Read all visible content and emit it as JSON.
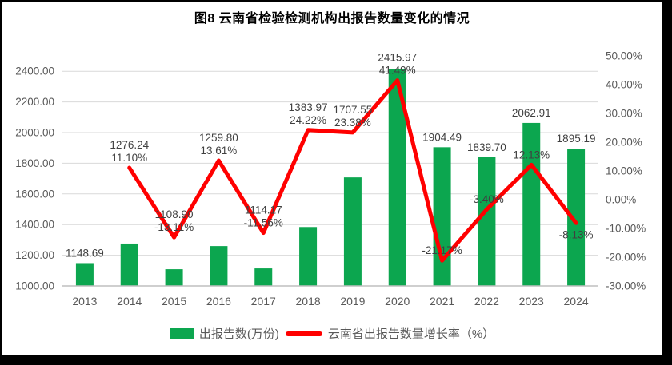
{
  "title": "图8 云南省检验检测机构出报告数量变化的情况",
  "legend": {
    "bar_label": "出报告数(万份)",
    "line_label": "云南省出报告数量增长率（%）"
  },
  "colors": {
    "bar": "#0CA64F",
    "line": "#FF0000",
    "gridline": "#D9D9D9",
    "axis_line": "#BFBFBF",
    "tick_text": "#595959",
    "label_text": "#404040",
    "title_text": "#000000"
  },
  "chart_data": {
    "type": "combo-bar-line",
    "title": "图8 云南省检验检测机构出报告数量变化的情况",
    "categories": [
      "2013",
      "2014",
      "2015",
      "2016",
      "2017",
      "2018",
      "2019",
      "2020",
      "2021",
      "2022",
      "2023",
      "2024"
    ],
    "series": [
      {
        "name": "出报告数(万份)",
        "type": "bar",
        "axis": "left",
        "values": [
          1148.69,
          1276.24,
          1108.9,
          1259.8,
          1114.17,
          1383.97,
          1707.55,
          2415.97,
          1904.49,
          1839.7,
          2062.91,
          1895.19
        ],
        "labels": [
          "1148.69",
          "1276.24",
          "1108.90",
          "1259.80",
          "1114.17",
          "1383.97",
          "1707.55",
          "2415.97",
          "1904.49",
          "1839.70",
          "2062.91",
          "1895.19"
        ]
      },
      {
        "name": "云南省出报告数量增长率（%）",
        "type": "line",
        "axis": "right",
        "values": [
          null,
          11.1,
          -13.11,
          13.61,
          -11.56,
          24.22,
          23.38,
          41.49,
          -21.17,
          -3.4,
          12.13,
          -8.13
        ],
        "labels": [
          "",
          "11.10%",
          "-13.11%",
          "13.61%",
          "-11.56%",
          "24.22%",
          "23.38%",
          "41.49%",
          "-21.17%",
          "-3.40%",
          "12.13%",
          "-8.13%"
        ],
        "label_side": [
          "",
          "above",
          "above",
          "above",
          "above",
          "above",
          "above",
          "above",
          "above",
          "above",
          "above",
          "below"
        ]
      }
    ],
    "left_axis": {
      "min": 1000,
      "max": 2500,
      "tick_values": [
        1000,
        1200,
        1400,
        1600,
        1800,
        2000,
        2200,
        2400
      ],
      "tick_labels": [
        "1000.00",
        "1200.00",
        "1400.00",
        "1600.00",
        "1800.00",
        "2000.00",
        "2200.00",
        "2400.00"
      ]
    },
    "right_axis": {
      "min": -30,
      "max": 50,
      "tick_values": [
        -30,
        -20,
        -10,
        0,
        10,
        20,
        30,
        40,
        50
      ],
      "tick_labels": [
        "-30.00%",
        "-20.00%",
        "-10.00%",
        "0.00%",
        "10.00%",
        "20.00%",
        "30.00%",
        "40.00%",
        "50.00%"
      ]
    },
    "grid": true,
    "legend_position": "bottom"
  }
}
